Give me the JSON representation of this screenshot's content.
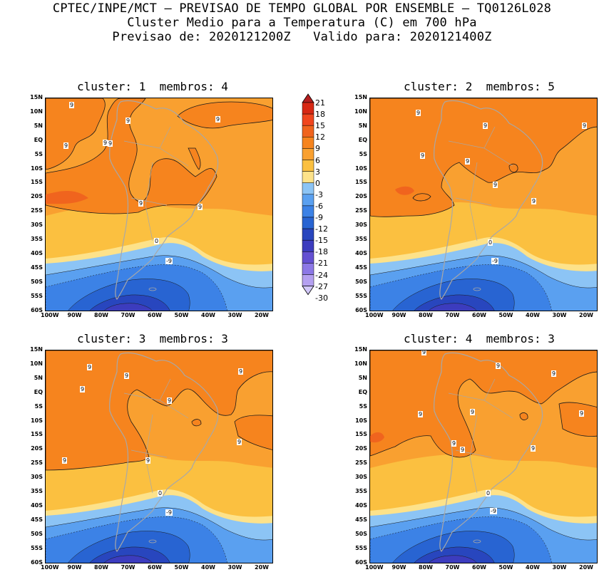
{
  "header": {
    "line1": "CPTEC/INPE/MCT – PREVISAO DE TEMPO GLOBAL POR ENSEMBLE – TQ0126L028",
    "line2": "Cluster Medio para a Temperatura (C) em 700 hPa",
    "line3": "Previsao de: 2020121200Z   Valido para: 2020121400Z"
  },
  "panels": [
    {
      "title": "cluster: 1  membros: 4"
    },
    {
      "title": "cluster: 2  membros: 5"
    },
    {
      "title": "cluster: 3  membros: 3"
    },
    {
      "title": "cluster: 4  membros: 3"
    }
  ],
  "lat_labels": [
    "15N",
    "10N",
    "5N",
    "EQ",
    "5S",
    "10S",
    "15S",
    "20S",
    "25S",
    "30S",
    "35S",
    "40S",
    "45S",
    "50S",
    "55S",
    "60S"
  ],
  "lon_labels": [
    "100W",
    "90W",
    "80W",
    "70W",
    "60W",
    "50W",
    "40W",
    "30W",
    "20W"
  ],
  "colorbar": {
    "levels": [
      "21",
      "18",
      "15",
      "12",
      "9",
      "6",
      "3",
      "0",
      "-3",
      "-6",
      "-9",
      "-12",
      "-15",
      "-18",
      "-21",
      "-24",
      "-27",
      "-30"
    ],
    "colors": [
      "#b41e1e",
      "#d72814",
      "#f0461e",
      "#f0641e",
      "#f6841e",
      "#f9a030",
      "#fbc040",
      "#fde28a",
      "#8cc4f5",
      "#5aa0f0",
      "#3c82e6",
      "#2864d2",
      "#2846be",
      "#3c3cbe",
      "#6450d2",
      "#8c78e6",
      "#b4a0f0",
      "#d2c8fa"
    ]
  },
  "contour_labels": {
    "p1": [
      "9",
      "9",
      "9",
      "9",
      "9",
      "9",
      "9",
      "9",
      "0",
      "-9"
    ],
    "p2": [
      "9",
      "9",
      "9",
      "9",
      "9",
      "9",
      "9",
      "0",
      "-9"
    ],
    "p3": [
      "9",
      "9",
      "9",
      "9",
      "9",
      "9",
      "9",
      "9",
      "0",
      "-9"
    ],
    "p4": [
      "9",
      "9",
      "9",
      "9",
      "9",
      "9",
      "9",
      "9",
      "9",
      "0",
      "-9"
    ]
  }
}
